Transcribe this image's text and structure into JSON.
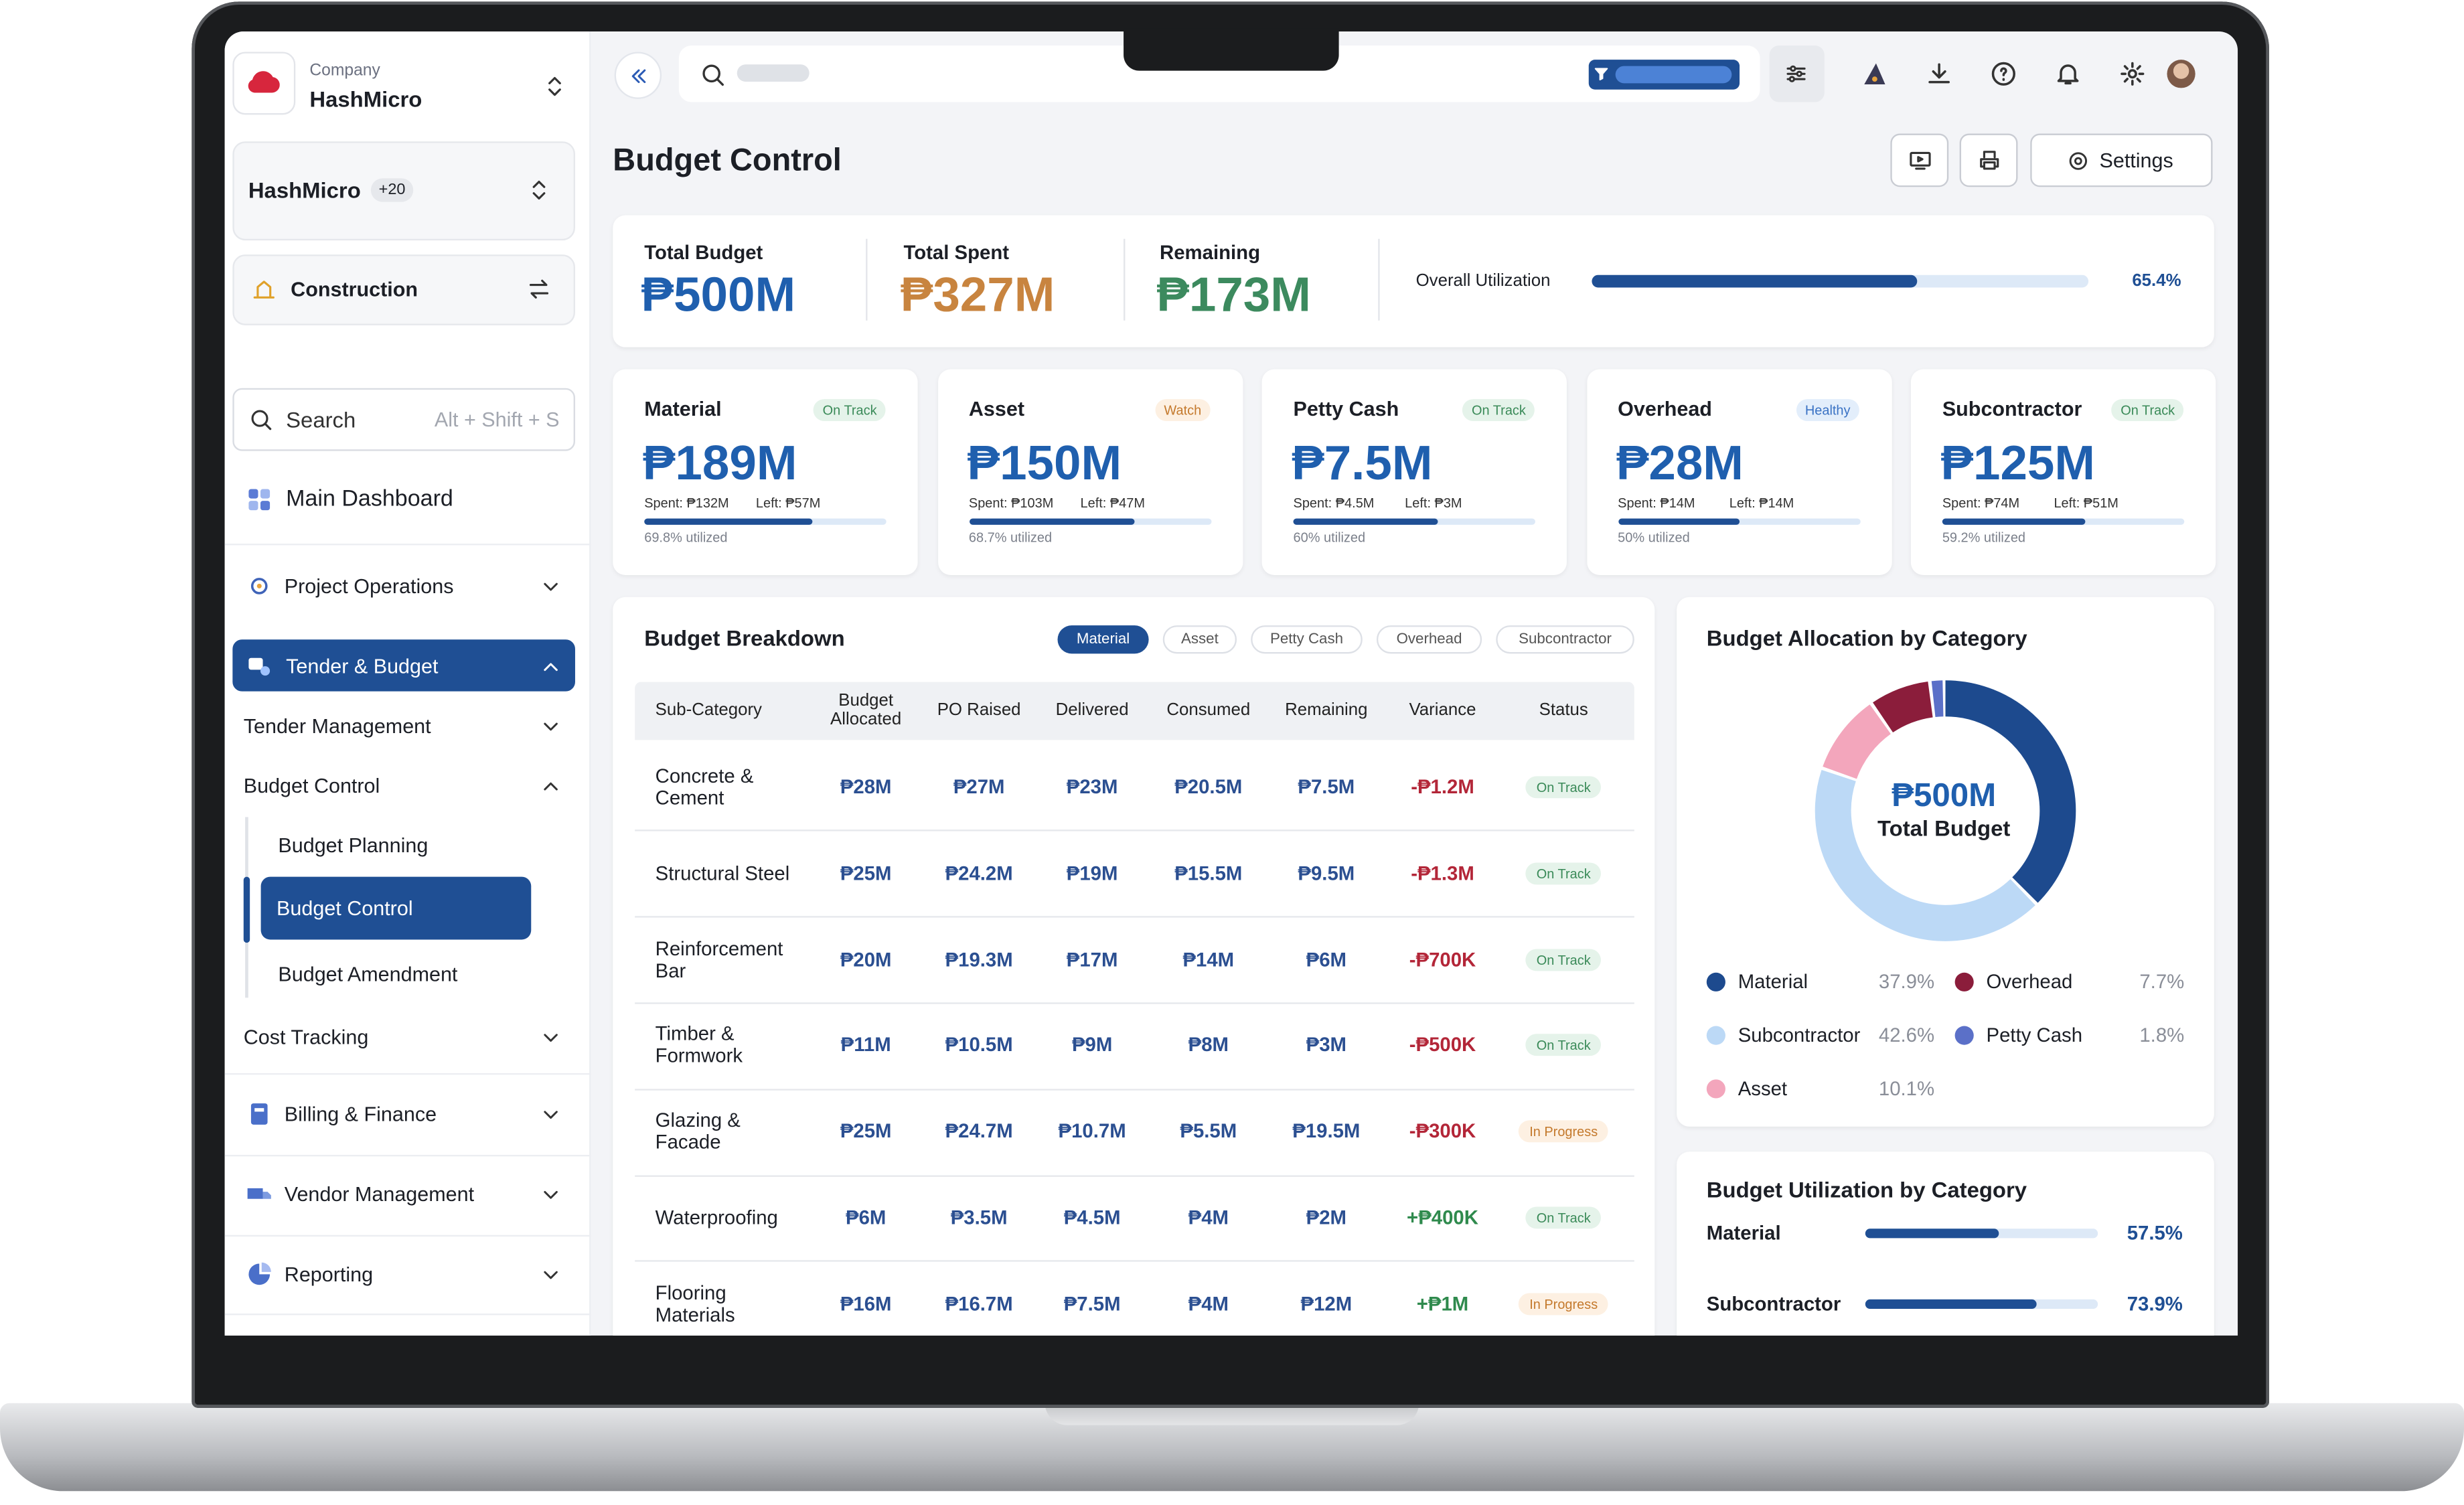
{
  "sidebar": {
    "company_label": "Company",
    "company": "HashMicro",
    "workspace": "HashMicro",
    "workspace_count": "+20",
    "module": "Construction",
    "search": "Search",
    "search_shortcut": "Alt + Shift + S",
    "menu": [
      "Main Dashboard",
      "Project Operations",
      "Tender & Budget",
      "Tender Management",
      "Budget Control",
      "Budget Planning",
      "Budget Control",
      "Budget Amendment",
      "Cost Tracking",
      "Billing & Finance",
      "Vendor Management",
      "Reporting"
    ]
  },
  "header": {
    "title": "Budget Control",
    "settings": "Settings"
  },
  "summary": {
    "items": [
      {
        "label": "Total Budget",
        "value": "₱500M",
        "color": "#1f5fae"
      },
      {
        "label": "Total Spent",
        "value": "₱327M",
        "color": "#c8843f"
      },
      {
        "label": "Remaining",
        "value": "₱173M",
        "color": "#3c8a5e"
      }
    ],
    "utilization": {
      "label": "Overall Utilization",
      "value": 65.4,
      "value_label": "65.4%"
    }
  },
  "categories": [
    {
      "name": "Material",
      "status": "On Track",
      "amount": "₱189M",
      "spent": "Spent: ₱132M",
      "left": "Left: ₱57M",
      "utilized": 69.8,
      "utilized_label": "69.8% utilized"
    },
    {
      "name": "Asset",
      "status": "Watch",
      "amount": "₱150M",
      "spent": "Spent: ₱103M",
      "left": "Left: ₱47M",
      "utilized": 68.7,
      "utilized_label": "68.7% utilized"
    },
    {
      "name": "Petty Cash",
      "status": "On Track",
      "amount": "₱7.5M",
      "spent": "Spent: ₱4.5M",
      "left": "Left: ₱3M",
      "utilized": 60,
      "utilized_label": "60% utilized"
    },
    {
      "name": "Overhead",
      "status": "Healthy",
      "amount": "₱28M",
      "spent": "Spent: ₱14M",
      "left": "Left: ₱14M",
      "utilized": 50,
      "utilized_label": "50% utilized"
    },
    {
      "name": "Subcontractor",
      "status": "On Track",
      "amount": "₱125M",
      "spent": "Spent: ₱74M",
      "left": "Left: ₱51M",
      "utilized": 59.2,
      "utilized_label": "59.2% utilized"
    }
  ],
  "breakdown": {
    "title": "Budget Breakdown",
    "tabs": [
      "Material",
      "Asset",
      "Petty Cash",
      "Overhead",
      "Subcontractor"
    ],
    "columns": [
      "Sub-Category",
      "Budget Allocated",
      "PO Raised",
      "Delivered",
      "Consumed",
      "Remaining",
      "Variance",
      "Status"
    ],
    "rows": [
      [
        "Concrete & Cement",
        "₱28M",
        "₱27M",
        "₱23M",
        "₱20.5M",
        "₱7.5M",
        "-₱1.2M",
        "On Track"
      ],
      [
        "Structural Steel",
        "₱25M",
        "₱24.2M",
        "₱19M",
        "₱15.5M",
        "₱9.5M",
        "-₱1.3M",
        "On Track"
      ],
      [
        "Reinforcement Bar",
        "₱20M",
        "₱19.3M",
        "₱17M",
        "₱14M",
        "₱6M",
        "-₱700K",
        "On Track"
      ],
      [
        "Timber & Formwork",
        "₱11M",
        "₱10.5M",
        "₱9M",
        "₱8M",
        "₱3M",
        "-₱500K",
        "On Track"
      ],
      [
        "Glazing & Facade",
        "₱25M",
        "₱24.7M",
        "₱10.7M",
        "₱5.5M",
        "₱19.5M",
        "-₱300K",
        "In Progress"
      ],
      [
        "Waterproofing",
        "₱6M",
        "₱3.5M",
        "₱4.5M",
        "₱4M",
        "₱2M",
        "+₱400K",
        "On Track"
      ],
      [
        "Flooring Materials",
        "₱16M",
        "₱16.7M",
        "₱7.5M",
        "₱4M",
        "₱12M",
        "+₱1M",
        "In Progress"
      ]
    ]
  },
  "allocation": {
    "title": "Budget Allocation by Category",
    "center_value": "₱500M",
    "center_label": "Total Budget",
    "series": [
      {
        "name": "Material",
        "value": 37.9,
        "label": "37.9%",
        "color": "#1d4a8e"
      },
      {
        "name": "Subcontractor",
        "value": 42.6,
        "label": "42.6%",
        "color": "#bcd9f6"
      },
      {
        "name": "Asset",
        "value": 10.1,
        "label": "10.1%",
        "color": "#f3a6bc"
      },
      {
        "name": "Overhead",
        "value": 7.7,
        "label": "7.7%",
        "color": "#8b1d3b"
      },
      {
        "name": "Petty Cash",
        "value": 1.8,
        "label": "1.8%",
        "color": "#5b70c8"
      }
    ]
  },
  "utilization": {
    "title": "Budget Utilization by Category",
    "rows": [
      {
        "name": "Material",
        "value": 57.5,
        "label": "57.5%"
      },
      {
        "name": "Subcontractor",
        "value": 73.9,
        "label": "73.9%"
      }
    ]
  }
}
